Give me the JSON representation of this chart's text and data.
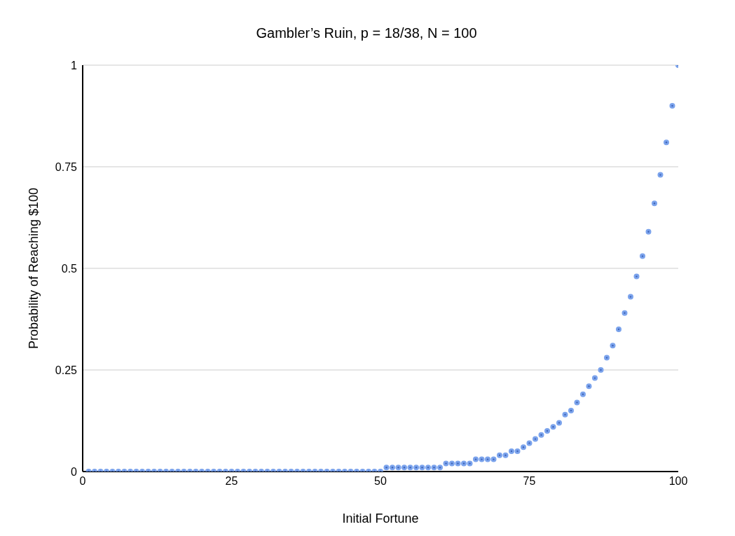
{
  "chart_data": {
    "type": "scatter",
    "title": "Gambler’s Ruin, p = 18/38, N = 100",
    "xlabel": "Initial Fortune",
    "ylabel": "Probability of Reaching $100",
    "x": [
      1,
      2,
      3,
      4,
      5,
      6,
      7,
      8,
      9,
      10,
      11,
      12,
      13,
      14,
      15,
      16,
      17,
      18,
      19,
      20,
      21,
      22,
      23,
      24,
      25,
      26,
      27,
      28,
      29,
      30,
      31,
      32,
      33,
      34,
      35,
      36,
      37,
      38,
      39,
      40,
      41,
      42,
      43,
      44,
      45,
      46,
      47,
      48,
      49,
      50,
      51,
      52,
      53,
      54,
      55,
      56,
      57,
      58,
      59,
      60,
      61,
      62,
      63,
      64,
      65,
      66,
      67,
      68,
      69,
      70,
      71,
      72,
      73,
      74,
      75,
      76,
      77,
      78,
      79,
      80,
      81,
      82,
      83,
      84,
      85,
      86,
      87,
      88,
      89,
      90,
      91,
      92,
      93,
      94,
      95,
      96,
      97,
      98,
      99,
      100
    ],
    "series": [
      {
        "color": "#7ba3ec",
        "values": [
          0,
          0,
          0,
          0,
          0,
          0,
          0,
          0,
          0,
          0,
          0,
          0,
          0,
          0,
          0,
          0,
          0,
          0,
          0,
          0,
          0,
          0,
          0,
          0,
          0,
          0,
          0,
          0,
          0,
          0,
          0,
          0,
          0,
          0,
          0,
          0,
          0,
          0,
          0,
          0,
          0,
          0,
          0,
          0,
          0,
          0,
          0,
          0,
          0,
          0,
          0.01,
          0.01,
          0.01,
          0.01,
          0.01,
          0.01,
          0.01,
          0.01,
          0.01,
          0.01,
          0.02,
          0.02,
          0.02,
          0.02,
          0.02,
          0.03,
          0.03,
          0.03,
          0.03,
          0.04,
          0.04,
          0.05,
          0.05,
          0.06,
          0.07,
          0.08,
          0.09,
          0.1,
          0.11,
          0.12,
          0.14,
          0.15,
          0.17,
          0.19,
          0.21,
          0.23,
          0.25,
          0.28,
          0.31,
          0.35,
          0.39,
          0.43,
          0.48,
          0.53,
          0.59,
          0.66,
          0.73,
          0.81,
          0.9,
          1
        ]
      }
    ],
    "xlim": [
      0,
      100
    ],
    "xticks": [
      0,
      25,
      50,
      75,
      100
    ],
    "ylim": [
      0,
      1
    ],
    "yticks": [
      0,
      0.25,
      0.5,
      0.75,
      1
    ],
    "grid": "y",
    "marker": "circle",
    "legend": false
  }
}
